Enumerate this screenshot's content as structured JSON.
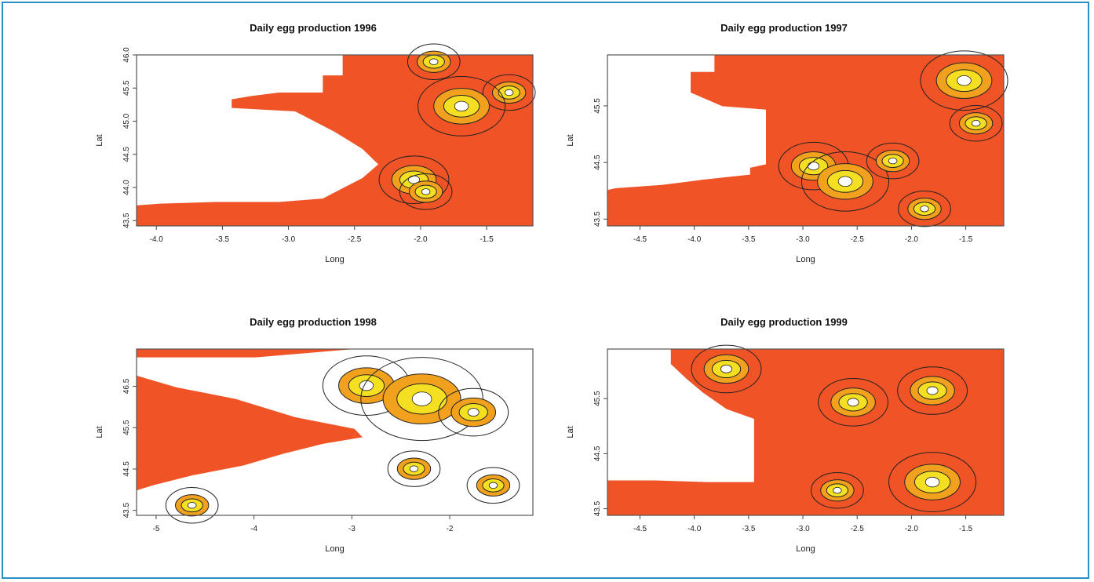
{
  "chart_data": [
    {
      "type": "heatmap",
      "title": "Daily egg production 1996",
      "xlabel": "Long",
      "ylabel": "Lat",
      "xlim": [
        -4.15,
        -1.15
      ],
      "ylim": [
        43.42,
        46.0
      ],
      "xticks": [
        "-4.0",
        "-3.5",
        "-3.0",
        "-2.5",
        "-2.0",
        "-1.5"
      ],
      "xtick_values": [
        -4.0,
        -3.5,
        -3.0,
        -2.5,
        -2.0,
        -1.5
      ],
      "yticks": [
        "43.5",
        "44.0",
        "44.5",
        "45.0",
        "45.5",
        "46.0"
      ],
      "ytick_values": [
        43.5,
        44.0,
        44.5,
        45.0,
        45.5,
        46.0
      ],
      "fill_color": "#f05326",
      "hotspot_colors": [
        "#f2a11f",
        "#f4df22",
        "#ffffff"
      ]
    },
    {
      "type": "heatmap",
      "title": "Daily egg production 1997",
      "xlabel": "Long",
      "ylabel": "Lat",
      "xlim": [
        -4.8,
        -1.15
      ],
      "ylim": [
        43.38,
        46.4
      ],
      "xticks": [
        "-4.5",
        "-4.0",
        "-3.5",
        "-3.0",
        "-2.5",
        "-2.0",
        "-1.5"
      ],
      "xtick_values": [
        -4.5,
        -4.0,
        -3.5,
        -3.0,
        -2.5,
        -2.0,
        -1.5
      ],
      "yticks": [
        "43.5",
        "44.5",
        "45.5"
      ],
      "ytick_values": [
        43.5,
        44.5,
        45.5
      ],
      "fill_color": "#f05326",
      "hotspot_colors": [
        "#f2a11f",
        "#f4df22",
        "#ffffff"
      ]
    },
    {
      "type": "heatmap",
      "title": "Daily egg production 1998",
      "xlabel": "Long",
      "ylabel": "Lat",
      "xlim": [
        -5.2,
        -1.15
      ],
      "ylim": [
        43.38,
        47.4
      ],
      "xticks": [
        "-5",
        "-4",
        "-3",
        "-2"
      ],
      "xtick_values": [
        -5,
        -4,
        -3,
        -2
      ],
      "yticks": [
        "43.5",
        "44.5",
        "45.5",
        "46.5"
      ],
      "ytick_values": [
        43.5,
        44.5,
        45.5,
        46.5
      ],
      "fill_color": "#f05326",
      "hotspot_colors": [
        "#f2a11f",
        "#f4df22",
        "#ffffff"
      ]
    },
    {
      "type": "heatmap",
      "title": "Daily egg production 1999",
      "xlabel": "Long",
      "ylabel": "Lat",
      "xlim": [
        -4.8,
        -1.15
      ],
      "ylim": [
        43.38,
        46.4
      ],
      "xticks": [
        "-4.5",
        "-4.0",
        "-3.5",
        "-3.0",
        "-2.5",
        "-2.0",
        "-1.5"
      ],
      "xtick_values": [
        -4.5,
        -4.0,
        -3.5,
        -3.0,
        -2.5,
        -2.0,
        -1.5
      ],
      "yticks": [
        "43.5",
        "44.5",
        "45.5"
      ],
      "ytick_values": [
        43.5,
        44.5,
        45.5
      ],
      "fill_color": "#f05326",
      "hotspot_colors": [
        "#f2a11f",
        "#f4df22",
        "#ffffff"
      ]
    }
  ]
}
